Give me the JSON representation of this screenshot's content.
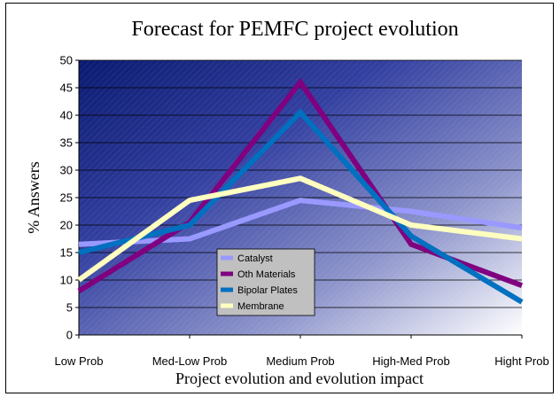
{
  "chart_data": {
    "type": "line",
    "title": "Forecast for PEMFC project evolution",
    "xlabel": "Project evolution and evolution impact",
    "ylabel": "% Answers",
    "categories": [
      "Low Prob",
      "Med-Low Prob",
      "Medium Prob",
      "High-Med Prob",
      "Hight Prob"
    ],
    "ylim": [
      0,
      50
    ],
    "yticks": [
      0,
      5,
      10,
      15,
      20,
      25,
      30,
      35,
      40,
      45,
      50
    ],
    "grid": true,
    "legend_position": "bottom-center",
    "plot_background": "gradient-dark-blue-to-white",
    "series": [
      {
        "name": "Catalyst",
        "color": "#9999ff",
        "values": [
          16.5,
          17.5,
          24.5,
          22.5,
          19.5
        ]
      },
      {
        "name": "Oth Materials",
        "color": "#800080",
        "values": [
          8,
          20.5,
          46,
          16.5,
          9
        ]
      },
      {
        "name": "Bipolar Plates",
        "color": "#0070c0",
        "values": [
          15,
          20,
          40.5,
          18,
          6
        ]
      },
      {
        "name": "Membrane",
        "color": "#ffffc0",
        "values": [
          10,
          24.5,
          28.5,
          20,
          17.5
        ]
      }
    ]
  }
}
